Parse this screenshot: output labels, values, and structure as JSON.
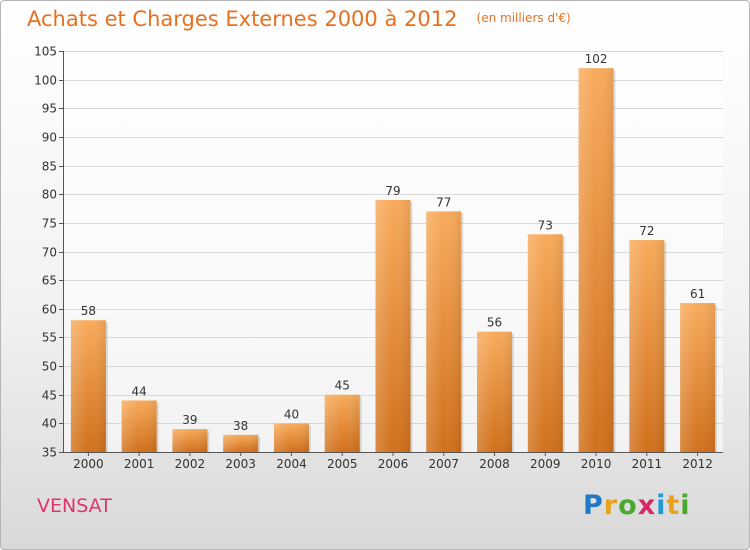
{
  "header": {
    "title": "Achats et Charges Externes 2000 à 2012",
    "unit": "(en milliers d'€)"
  },
  "footer": {
    "commune": "VENSAT",
    "logo_letters": [
      "P",
      "r",
      "o",
      "x",
      "i",
      "t",
      "i"
    ],
    "logo_colors": [
      "#1f78c8",
      "#e8a21e",
      "#49a82e",
      "#d8266a",
      "#1f9ad8",
      "#e8a21e",
      "#49a82e"
    ]
  },
  "colors": {
    "bar_light": "#f8ab5c",
    "bar_dark": "#d0701b",
    "title": "#e8701e",
    "commune": "#e0356a",
    "grid": "#d8d8d8",
    "axis": "#555555"
  },
  "chart_data": {
    "type": "bar",
    "title": "Achats et Charges Externes 2000 à 2012",
    "subtitle": "(en milliers d'€)",
    "xlabel": "",
    "ylabel": "",
    "categories": [
      "2000",
      "2001",
      "2002",
      "2003",
      "2004",
      "2005",
      "2006",
      "2007",
      "2008",
      "2009",
      "2010",
      "2011",
      "2012"
    ],
    "values": [
      58,
      44,
      39,
      38,
      40,
      45,
      79,
      77,
      56,
      73,
      102,
      72,
      61
    ],
    "ylim": [
      35,
      105
    ],
    "yticks": [
      35,
      40,
      45,
      50,
      55,
      60,
      65,
      70,
      75,
      80,
      85,
      90,
      95,
      100,
      105
    ],
    "grid": true,
    "legend": "none"
  }
}
